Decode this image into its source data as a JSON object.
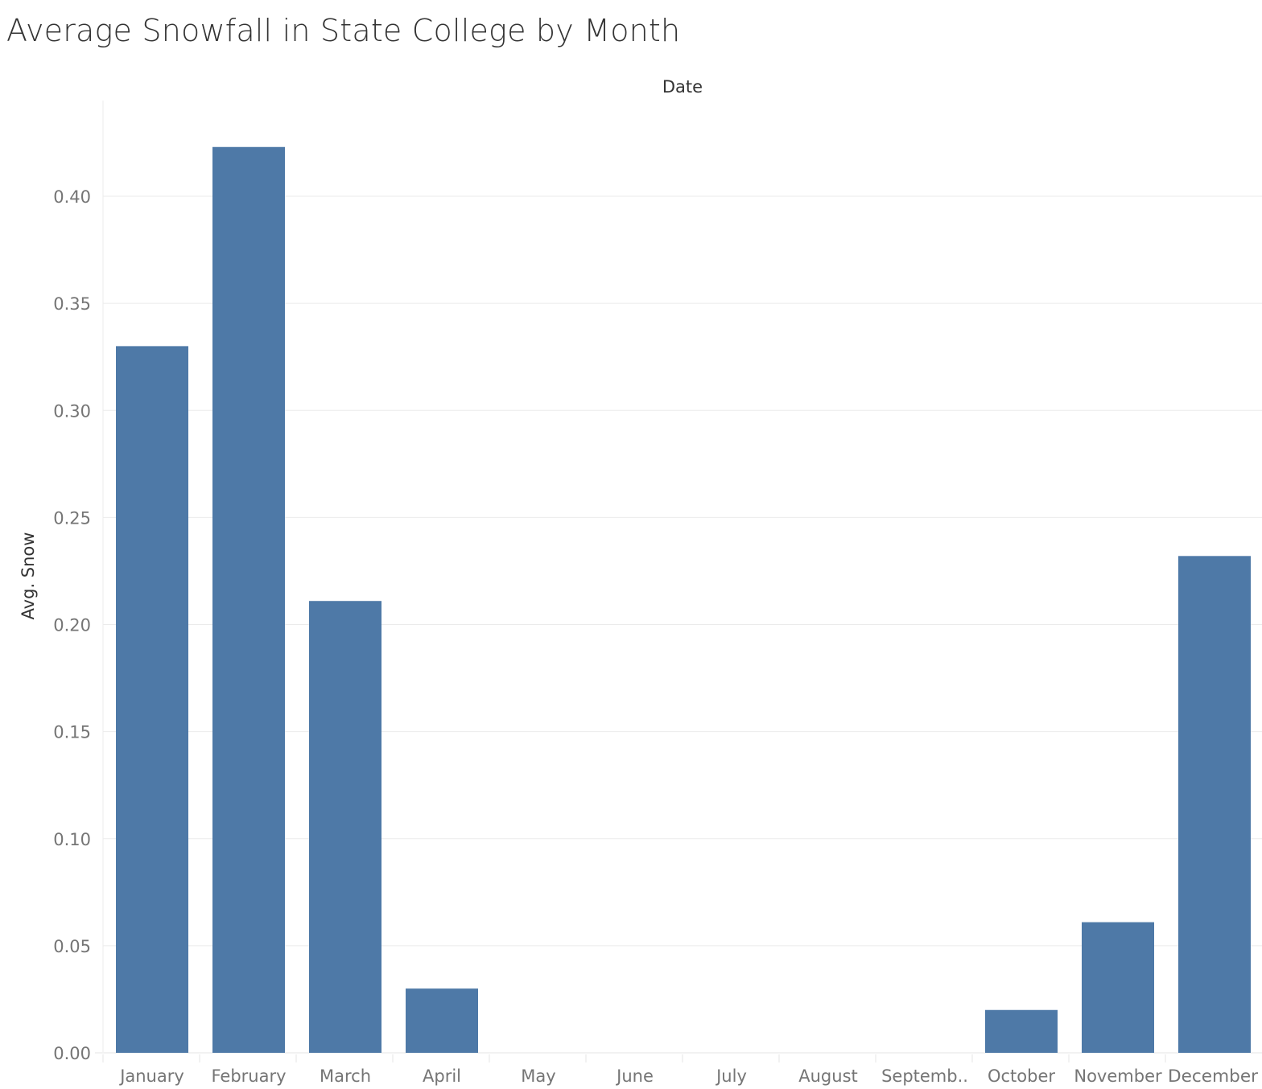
{
  "chart_data": {
    "type": "bar",
    "title": "Average Snowfall in State College by Month",
    "xlabel": "Date",
    "ylabel": "Avg. Snow",
    "categories": [
      "January",
      "February",
      "March",
      "April",
      "May",
      "June",
      "July",
      "August",
      "Septemb..",
      "October",
      "November",
      "December"
    ],
    "values": [
      0.33,
      0.423,
      0.211,
      0.03,
      0,
      0,
      0,
      0,
      0,
      0.02,
      0.061,
      0.232
    ],
    "ylim": [
      0,
      0.44
    ],
    "yticks": [
      "0.00",
      "0.05",
      "0.10",
      "0.15",
      "0.20",
      "0.25",
      "0.30",
      "0.35",
      "0.40"
    ],
    "grid": true,
    "bar_color": "#4e79a7",
    "grid_color": "#ebebeb",
    "legend": "none"
  }
}
